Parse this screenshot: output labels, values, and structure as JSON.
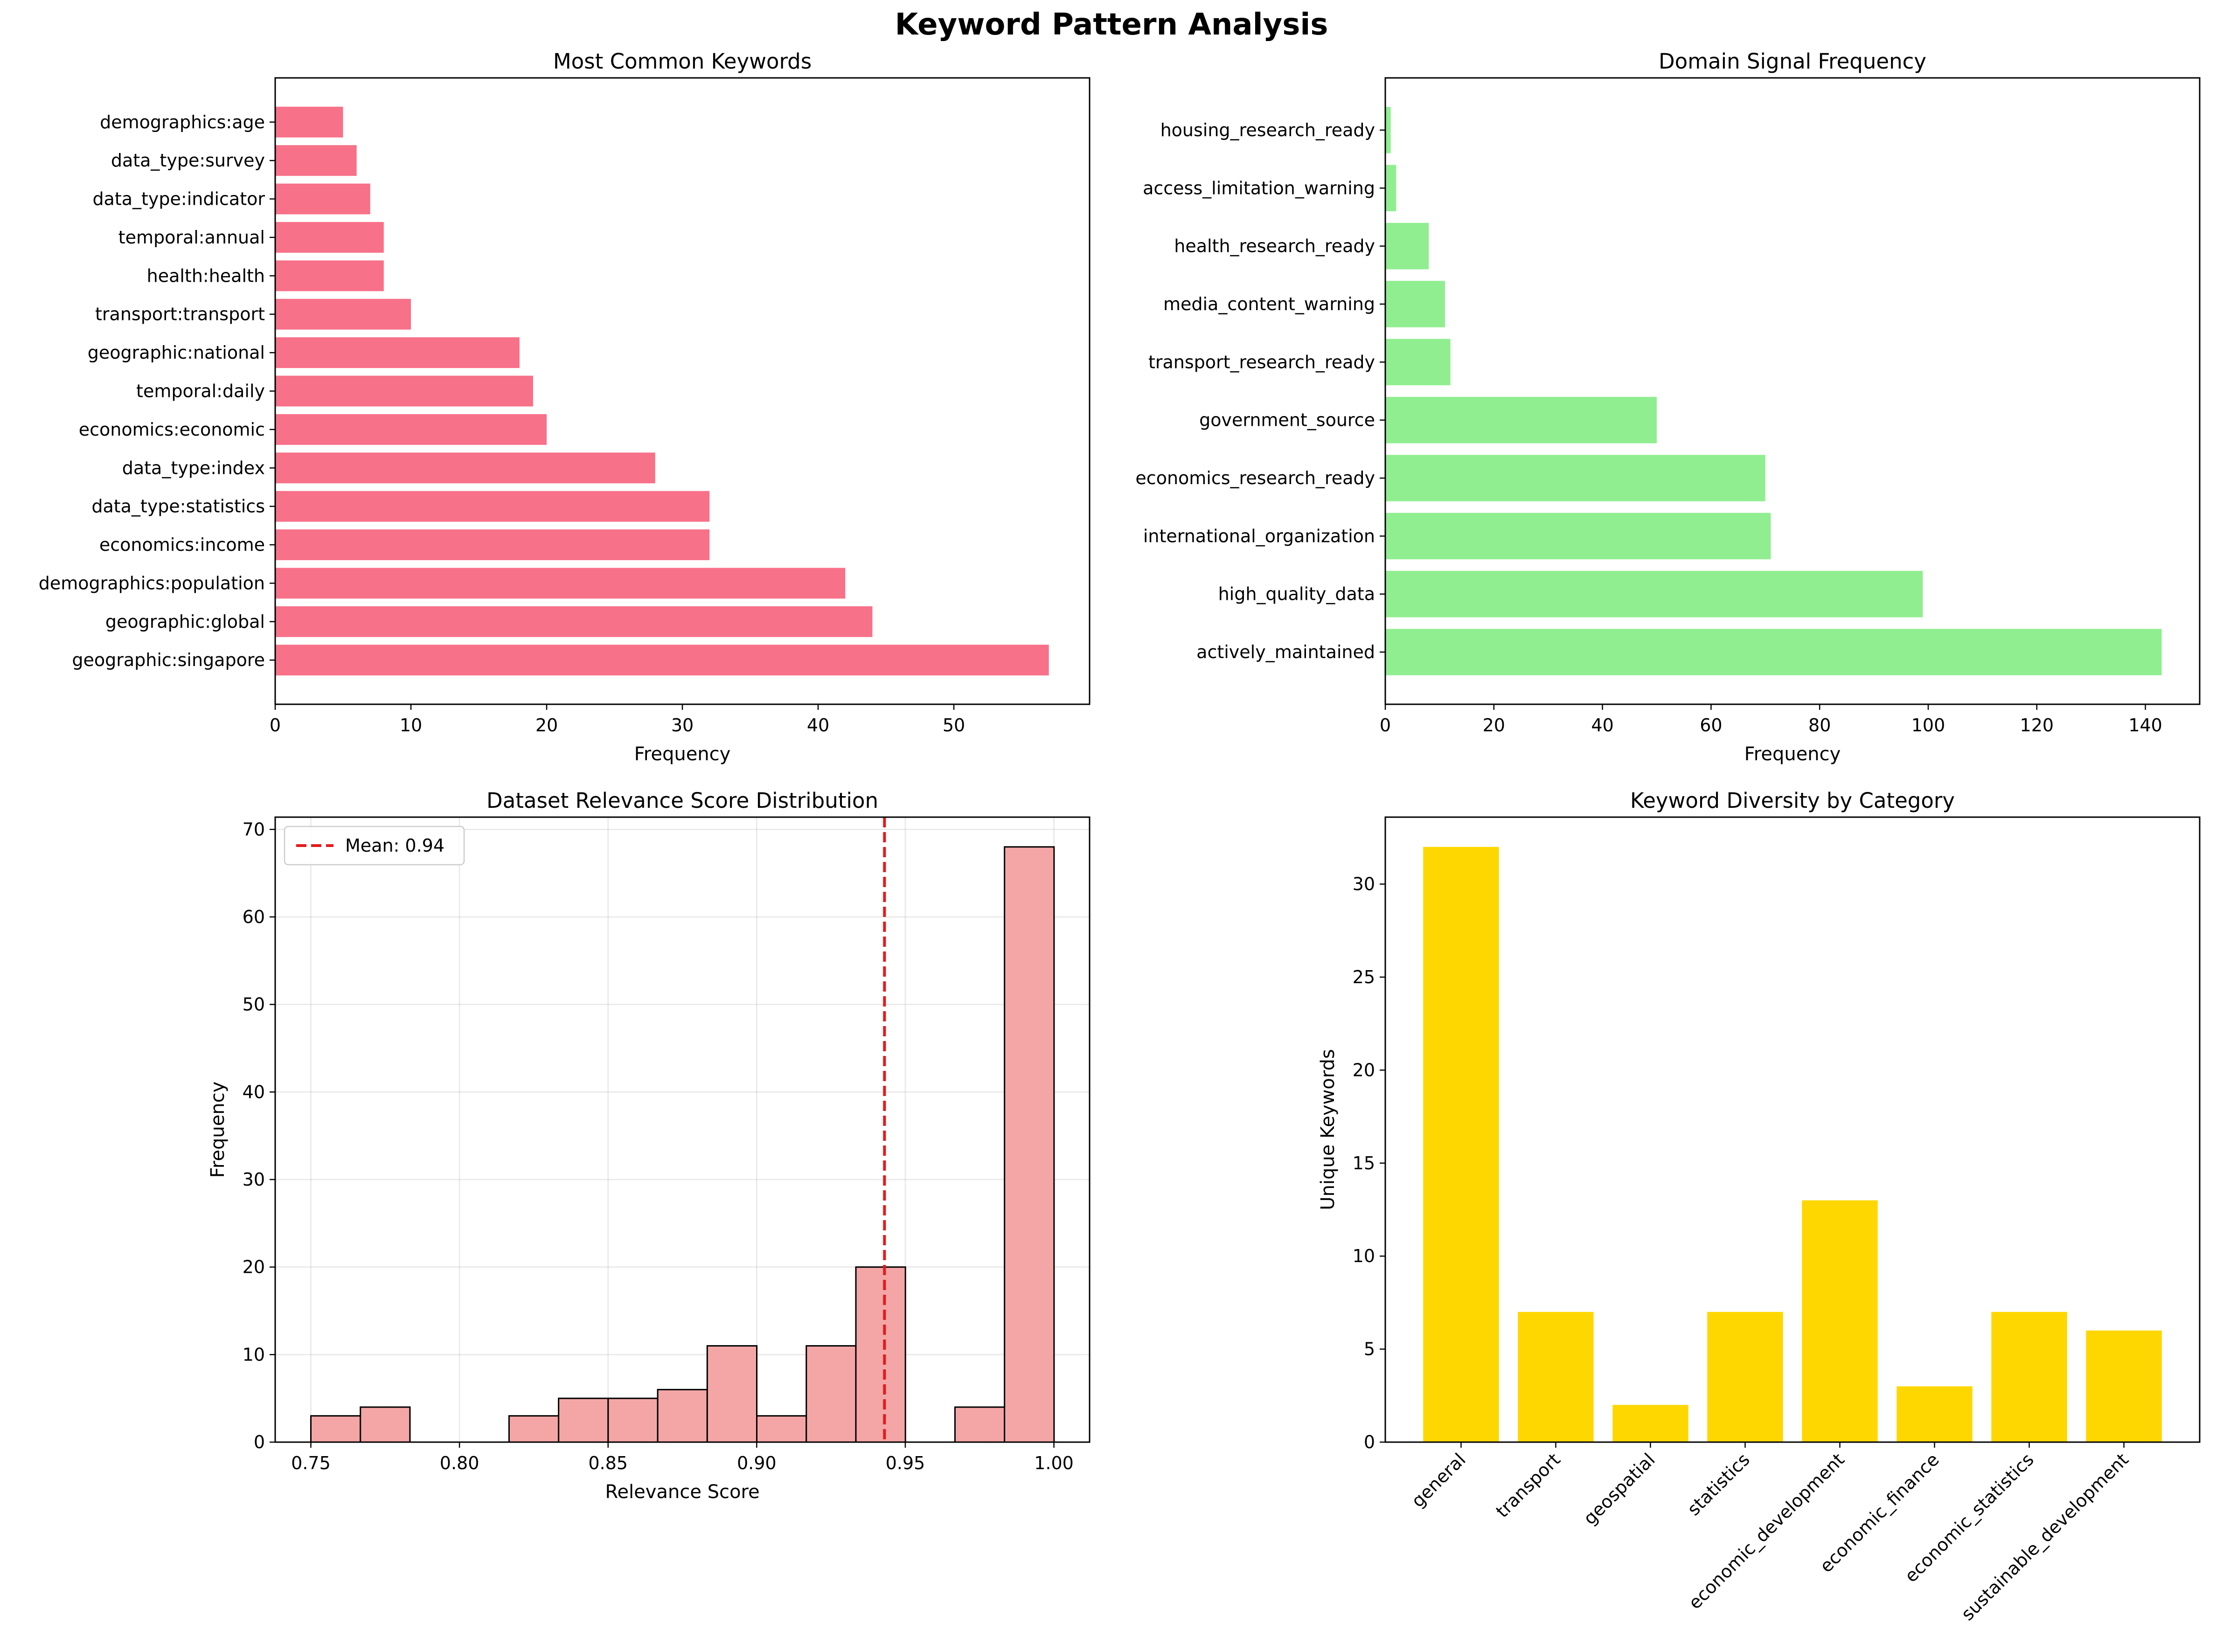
{
  "figure": {
    "title": "Keyword Pattern Analysis"
  },
  "chart_data": [
    {
      "type": "bar",
      "orientation": "horizontal",
      "title": "Most Common Keywords",
      "xlabel": "Frequency",
      "ylabel": "",
      "xlim": [
        0,
        60
      ],
      "xticks": [
        0,
        10,
        20,
        30,
        40,
        50
      ],
      "color": "#f77189",
      "grid": false,
      "categories": [
        "geographic:singapore",
        "geographic:global",
        "demographics:population",
        "economics:income",
        "data_type:statistics",
        "data_type:index",
        "economics:economic",
        "temporal:daily",
        "geographic:national",
        "transport:transport",
        "health:health",
        "temporal:annual",
        "data_type:indicator",
        "data_type:survey",
        "demographics:age"
      ],
      "values": [
        57,
        44,
        42,
        32,
        32,
        28,
        20,
        19,
        18,
        10,
        8,
        8,
        7,
        6,
        5
      ]
    },
    {
      "type": "bar",
      "orientation": "horizontal",
      "title": "Domain Signal Frequency",
      "xlabel": "Frequency",
      "ylabel": "",
      "xlim": [
        0,
        150
      ],
      "xticks": [
        0,
        20,
        40,
        60,
        80,
        100,
        120,
        140
      ],
      "color": "#90ee90",
      "grid": false,
      "categories": [
        "actively_maintained",
        "high_quality_data",
        "international_organization",
        "economics_research_ready",
        "government_source",
        "transport_research_ready",
        "media_content_warning",
        "health_research_ready",
        "access_limitation_warning",
        "housing_research_ready"
      ],
      "values": [
        143,
        99,
        71,
        70,
        50,
        12,
        11,
        8,
        2,
        1
      ]
    },
    {
      "type": "histogram",
      "title": "Dataset Relevance Score Distribution",
      "xlabel": "Relevance Score",
      "ylabel": "Frequency",
      "xlim": [
        0.738,
        1.012
      ],
      "ylim": [
        0,
        71.4
      ],
      "xticks": [
        "0.75",
        "0.80",
        "0.85",
        "0.90",
        "0.95",
        "1.00"
      ],
      "yticks": [
        0,
        10,
        20,
        30,
        40,
        50,
        60,
        70
      ],
      "bin_start": 0.75,
      "bin_width": 0.01667,
      "counts": [
        3,
        4,
        0,
        0,
        3,
        5,
        5,
        6,
        11,
        3,
        11,
        20,
        0,
        4,
        68
      ],
      "color": "#f4a6a6",
      "edgecolor": "#000000",
      "grid": true,
      "mean_line": {
        "value": 0.943,
        "label": "Mean: 0.94",
        "color": "#e41a1c"
      },
      "legend": "top-left"
    },
    {
      "type": "bar",
      "title": "Keyword Diversity by Category",
      "xlabel": "",
      "ylabel": "Unique Keywords",
      "ylim": [
        0,
        33.6
      ],
      "yticks": [
        0,
        5,
        10,
        15,
        20,
        25,
        30
      ],
      "color": "#ffd700",
      "grid": false,
      "categories": [
        "general",
        "transport",
        "geospatial",
        "statistics",
        "economic_development",
        "economic_finance",
        "economic_statistics",
        "sustainable_development"
      ],
      "values": [
        32,
        7,
        2,
        7,
        13,
        3,
        7,
        6
      ]
    }
  ]
}
